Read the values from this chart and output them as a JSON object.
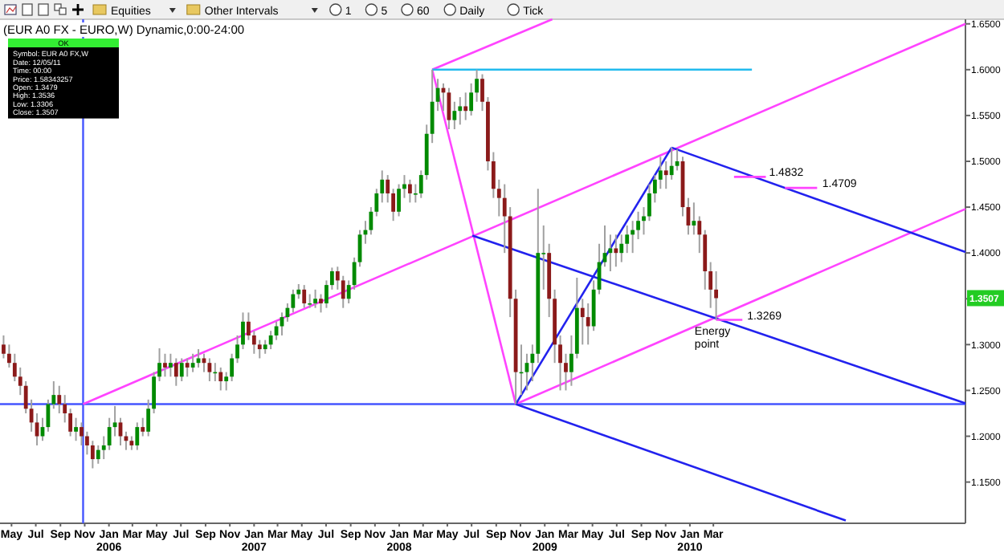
{
  "chart_data": {
    "type": "candlestick",
    "title": "(EUR A0 FX - EURO,W) Dynamic,0:00-24:00",
    "x": [
      "2005-04-11",
      "2005-04-25",
      "2005-05-09",
      "2005-05-23",
      "2005-06-06",
      "2005-06-20",
      "2005-07-04",
      "2005-07-18",
      "2005-08-01",
      "2005-08-15",
      "2005-08-29",
      "2005-09-12",
      "2005-09-26",
      "2005-10-10",
      "2005-10-24",
      "2005-11-07",
      "2005-11-21",
      "2005-12-05",
      "2005-12-19",
      "2006-01-02",
      "2006-01-16",
      "2006-01-30",
      "2006-02-13",
      "2006-02-27",
      "2006-03-13",
      "2006-03-27",
      "2006-04-10",
      "2006-04-24",
      "2006-05-08",
      "2006-05-22",
      "2006-06-05",
      "2006-06-19",
      "2006-07-03",
      "2006-07-17",
      "2006-07-31",
      "2006-08-14",
      "2006-08-28",
      "2006-09-11",
      "2006-09-25",
      "2006-10-09",
      "2006-10-23",
      "2006-11-06",
      "2006-11-20",
      "2006-12-04",
      "2006-12-18",
      "2007-01-01",
      "2007-01-15",
      "2007-01-29",
      "2007-02-12",
      "2007-02-26",
      "2007-03-12",
      "2007-03-26",
      "2007-04-09",
      "2007-04-23",
      "2007-05-07",
      "2007-05-21",
      "2007-06-04",
      "2007-06-18",
      "2007-07-02",
      "2007-07-16",
      "2007-07-30",
      "2007-08-13",
      "2007-08-27",
      "2007-09-10",
      "2007-09-24",
      "2007-10-08",
      "2007-10-22",
      "2007-11-05",
      "2007-11-19",
      "2007-12-03",
      "2007-12-17",
      "2007-12-31",
      "2008-01-14",
      "2008-01-28",
      "2008-02-11",
      "2008-02-25",
      "2008-03-10",
      "2008-03-24",
      "2008-04-07",
      "2008-04-21",
      "2008-05-05",
      "2008-05-19",
      "2008-06-02",
      "2008-06-16",
      "2008-06-30",
      "2008-07-14",
      "2008-07-28",
      "2008-08-11",
      "2008-08-25",
      "2008-09-08",
      "2008-09-22",
      "2008-10-06",
      "2008-10-20",
      "2008-11-03",
      "2008-11-17",
      "2008-12-01",
      "2008-12-15",
      "2008-12-29",
      "2009-01-12",
      "2009-01-26",
      "2009-02-09",
      "2009-02-23",
      "2009-03-09",
      "2009-03-23",
      "2009-04-06",
      "2009-04-20",
      "2009-05-04",
      "2009-05-18",
      "2009-06-01",
      "2009-06-15",
      "2009-06-29",
      "2009-07-13",
      "2009-07-27",
      "2009-08-10",
      "2009-08-24",
      "2009-09-07",
      "2009-09-21",
      "2009-10-05",
      "2009-10-19",
      "2009-11-02",
      "2009-11-16",
      "2009-11-30",
      "2009-12-14",
      "2009-12-28",
      "2010-01-11",
      "2010-01-25",
      "2010-02-08",
      "2010-02-22",
      "2010-03-08"
    ],
    "ohlc": [
      [
        1.3,
        1.31,
        1.285,
        1.29
      ],
      [
        1.29,
        1.3,
        1.275,
        1.28
      ],
      [
        1.28,
        1.29,
        1.26,
        1.265
      ],
      [
        1.265,
        1.275,
        1.245,
        1.255
      ],
      [
        1.255,
        1.26,
        1.225,
        1.23
      ],
      [
        1.23,
        1.24,
        1.205,
        1.215
      ],
      [
        1.215,
        1.225,
        1.19,
        1.2
      ],
      [
        1.2,
        1.22,
        1.195,
        1.21
      ],
      [
        1.21,
        1.24,
        1.205,
        1.235
      ],
      [
        1.235,
        1.26,
        1.23,
        1.245
      ],
      [
        1.245,
        1.255,
        1.225,
        1.235
      ],
      [
        1.235,
        1.245,
        1.215,
        1.225
      ],
      [
        1.225,
        1.23,
        1.2,
        1.205
      ],
      [
        1.205,
        1.22,
        1.195,
        1.21
      ],
      [
        1.21,
        1.215,
        1.19,
        1.2
      ],
      [
        1.2,
        1.205,
        1.18,
        1.19
      ],
      [
        1.19,
        1.195,
        1.165,
        1.175
      ],
      [
        1.175,
        1.19,
        1.17,
        1.185
      ],
      [
        1.185,
        1.2,
        1.175,
        1.19
      ],
      [
        1.19,
        1.22,
        1.185,
        1.21
      ],
      [
        1.21,
        1.233,
        1.2,
        1.215
      ],
      [
        1.215,
        1.22,
        1.19,
        1.2
      ],
      [
        1.2,
        1.205,
        1.185,
        1.195
      ],
      [
        1.195,
        1.2,
        1.185,
        1.19
      ],
      [
        1.19,
        1.215,
        1.185,
        1.21
      ],
      [
        1.21,
        1.22,
        1.2,
        1.205
      ],
      [
        1.205,
        1.24,
        1.2,
        1.23
      ],
      [
        1.23,
        1.27,
        1.225,
        1.265
      ],
      [
        1.265,
        1.296,
        1.26,
        1.28
      ],
      [
        1.28,
        1.29,
        1.265,
        1.275
      ],
      [
        1.275,
        1.29,
        1.265,
        1.28
      ],
      [
        1.28,
        1.285,
        1.255,
        1.265
      ],
      [
        1.265,
        1.285,
        1.26,
        1.28
      ],
      [
        1.28,
        1.285,
        1.265,
        1.275
      ],
      [
        1.275,
        1.29,
        1.27,
        1.28
      ],
      [
        1.28,
        1.295,
        1.275,
        1.285
      ],
      [
        1.285,
        1.29,
        1.27,
        1.28
      ],
      [
        1.28,
        1.285,
        1.26,
        1.27
      ],
      [
        1.27,
        1.28,
        1.26,
        1.27
      ],
      [
        1.27,
        1.275,
        1.25,
        1.26
      ],
      [
        1.26,
        1.27,
        1.25,
        1.265
      ],
      [
        1.265,
        1.29,
        1.26,
        1.285
      ],
      [
        1.285,
        1.31,
        1.28,
        1.3
      ],
      [
        1.3,
        1.335,
        1.295,
        1.325
      ],
      [
        1.325,
        1.335,
        1.305,
        1.31
      ],
      [
        1.31,
        1.315,
        1.29,
        1.3
      ],
      [
        1.3,
        1.305,
        1.285,
        1.295
      ],
      [
        1.295,
        1.305,
        1.29,
        1.3
      ],
      [
        1.3,
        1.315,
        1.295,
        1.31
      ],
      [
        1.31,
        1.325,
        1.305,
        1.32
      ],
      [
        1.32,
        1.335,
        1.31,
        1.33
      ],
      [
        1.33,
        1.345,
        1.325,
        1.34
      ],
      [
        1.34,
        1.36,
        1.335,
        1.355
      ],
      [
        1.355,
        1.366,
        1.35,
        1.36
      ],
      [
        1.36,
        1.365,
        1.34,
        1.345
      ],
      [
        1.345,
        1.355,
        1.34,
        1.345
      ],
      [
        1.345,
        1.36,
        1.34,
        1.35
      ],
      [
        1.35,
        1.355,
        1.335,
        1.345
      ],
      [
        1.345,
        1.37,
        1.34,
        1.365
      ],
      [
        1.365,
        1.384,
        1.36,
        1.38
      ],
      [
        1.38,
        1.385,
        1.36,
        1.37
      ],
      [
        1.37,
        1.375,
        1.34,
        1.35
      ],
      [
        1.35,
        1.37,
        1.345,
        1.365
      ],
      [
        1.365,
        1.395,
        1.36,
        1.39
      ],
      [
        1.39,
        1.425,
        1.385,
        1.42
      ],
      [
        1.42,
        1.435,
        1.41,
        1.425
      ],
      [
        1.425,
        1.45,
        1.42,
        1.445
      ],
      [
        1.445,
        1.47,
        1.44,
        1.465
      ],
      [
        1.465,
        1.49,
        1.455,
        1.48
      ],
      [
        1.48,
        1.485,
        1.455,
        1.465
      ],
      [
        1.465,
        1.47,
        1.435,
        1.445
      ],
      [
        1.445,
        1.475,
        1.44,
        1.47
      ],
      [
        1.47,
        1.485,
        1.46,
        1.475
      ],
      [
        1.475,
        1.48,
        1.455,
        1.465
      ],
      [
        1.465,
        1.475,
        1.455,
        1.465
      ],
      [
        1.465,
        1.49,
        1.46,
        1.485
      ],
      [
        1.485,
        1.54,
        1.48,
        1.53
      ],
      [
        1.53,
        1.6,
        1.52,
        1.565
      ],
      [
        1.565,
        1.59,
        1.555,
        1.58
      ],
      [
        1.58,
        1.585,
        1.555,
        1.575
      ],
      [
        1.575,
        1.58,
        1.535,
        1.545
      ],
      [
        1.545,
        1.565,
        1.535,
        1.555
      ],
      [
        1.555,
        1.57,
        1.54,
        1.56
      ],
      [
        1.56,
        1.575,
        1.545,
        1.555
      ],
      [
        1.555,
        1.585,
        1.55,
        1.575
      ],
      [
        1.575,
        1.6,
        1.565,
        1.59
      ],
      [
        1.59,
        1.595,
        1.555,
        1.565
      ],
      [
        1.565,
        1.57,
        1.49,
        1.5
      ],
      [
        1.5,
        1.51,
        1.46,
        1.47
      ],
      [
        1.47,
        1.48,
        1.44,
        1.46
      ],
      [
        1.46,
        1.475,
        1.4,
        1.44
      ],
      [
        1.44,
        1.45,
        1.33,
        1.35
      ],
      [
        1.35,
        1.36,
        1.235,
        1.27
      ],
      [
        1.27,
        1.3,
        1.245,
        1.27
      ],
      [
        1.27,
        1.29,
        1.25,
        1.28
      ],
      [
        1.28,
        1.3,
        1.26,
        1.29
      ],
      [
        1.29,
        1.47,
        1.28,
        1.4
      ],
      [
        1.4,
        1.43,
        1.36,
        1.4
      ],
      [
        1.4,
        1.41,
        1.33,
        1.35
      ],
      [
        1.35,
        1.36,
        1.28,
        1.3
      ],
      [
        1.3,
        1.31,
        1.25,
        1.28
      ],
      [
        1.28,
        1.29,
        1.25,
        1.27
      ],
      [
        1.27,
        1.31,
        1.255,
        1.29
      ],
      [
        1.29,
        1.373,
        1.285,
        1.34
      ],
      [
        1.34,
        1.35,
        1.3,
        1.33
      ],
      [
        1.33,
        1.345,
        1.3,
        1.32
      ],
      [
        1.32,
        1.37,
        1.315,
        1.36
      ],
      [
        1.36,
        1.41,
        1.355,
        1.39
      ],
      [
        1.39,
        1.43,
        1.385,
        1.4
      ],
      [
        1.4,
        1.42,
        1.38,
        1.405
      ],
      [
        1.405,
        1.42,
        1.385,
        1.4
      ],
      [
        1.4,
        1.42,
        1.39,
        1.41
      ],
      [
        1.41,
        1.43,
        1.4,
        1.42
      ],
      [
        1.42,
        1.435,
        1.4,
        1.425
      ],
      [
        1.425,
        1.445,
        1.415,
        1.435
      ],
      [
        1.435,
        1.45,
        1.42,
        1.44
      ],
      [
        1.44,
        1.475,
        1.435,
        1.465
      ],
      [
        1.465,
        1.485,
        1.455,
        1.48
      ],
      [
        1.48,
        1.505,
        1.47,
        1.49
      ],
      [
        1.49,
        1.5,
        1.47,
        1.485
      ],
      [
        1.485,
        1.515,
        1.48,
        1.495
      ],
      [
        1.495,
        1.513,
        1.49,
        1.5
      ],
      [
        1.5,
        1.505,
        1.44,
        1.45
      ],
      [
        1.45,
        1.46,
        1.42,
        1.43
      ],
      [
        1.43,
        1.455,
        1.42,
        1.435
      ],
      [
        1.435,
        1.44,
        1.4,
        1.42
      ],
      [
        1.42,
        1.425,
        1.36,
        1.38
      ],
      [
        1.38,
        1.39,
        1.34,
        1.36
      ],
      [
        1.36,
        1.38,
        1.3269,
        1.3507
      ]
    ],
    "series": [
      {
        "type": "line",
        "color": "#ff44ff",
        "x": [
          "2005-10-28",
          "2011-11-25"
        ],
        "values": [
          1.235,
          1.65
        ]
      },
      {
        "type": "line",
        "color": "#ff44ff",
        "x": [
          "2008-03-24",
          "2009-01-20"
        ],
        "values": [
          1.6,
          1.655
        ]
      },
      {
        "type": "line",
        "color": "#ff44ff",
        "x": [
          "2008-03-24",
          "2008-10-20"
        ],
        "values": [
          1.6,
          1.235
        ]
      },
      {
        "type": "line",
        "color": "#ff44ff",
        "x": [
          "2008-10-20",
          "2011-11-25"
        ],
        "values": [
          1.235,
          1.448
        ]
      },
      {
        "type": "line",
        "color": "#2222ee",
        "x": [
          "2008-07-03",
          "2011-11-25"
        ],
        "values": [
          1.419,
          1.236
        ]
      },
      {
        "type": "line",
        "color": "#2222ee",
        "x": [
          "2008-10-20",
          "2011-01-28"
        ],
        "values": [
          1.235,
          1.108
        ]
      },
      {
        "type": "line",
        "color": "#2222ee",
        "x": [
          "2009-11-16",
          "2011-11-25"
        ],
        "values": [
          1.515,
          1.401
        ]
      },
      {
        "type": "line",
        "color": "#2222ee",
        "x": [
          "2008-10-20",
          "2009-11-16"
        ],
        "values": [
          1.235,
          1.515
        ]
      },
      {
        "type": "line",
        "color": "#22bbee",
        "x": [
          "2008-03-24",
          "2010-06-06"
        ],
        "values": [
          1.6,
          1.6
        ]
      },
      {
        "type": "line",
        "color": "#ff44ff",
        "x": [
          "2010-04-22",
          "2010-07-11"
        ],
        "values": [
          1.483,
          1.483
        ]
      },
      {
        "type": "line",
        "color": "#ff44ff",
        "x": [
          "2010-08-28",
          "2010-11-17"
        ],
        "values": [
          1.471,
          1.471
        ]
      },
      {
        "type": "line",
        "color": "#ff44ff",
        "x": [
          "2010-03-08",
          "2010-05-13"
        ],
        "values": [
          1.327,
          1.327
        ]
      }
    ],
    "ref_lines": [
      {
        "axis": "y",
        "value": 1.235,
        "color": "#4455ff"
      },
      {
        "axis": "x",
        "value": "2005-10-28",
        "color": "#4455ff"
      }
    ],
    "annotations": [
      "Equities",
      "Other Intervals",
      "1",
      "5",
      "60",
      "Daily",
      "Tick",
      "OK",
      "Symbol: EUR A0 FX,W",
      "Date: 12/05/11",
      "Time: 00:00",
      "Price: 1.58343257",
      "Open: 1.3479",
      "High: 1.3536",
      "Low: 1.3306",
      "Close: 1.3507",
      {
        "text": "1.4832",
        "x": "2010-07-19",
        "y": 1.4832
      },
      {
        "text": "1.4709",
        "x": "2010-11-30",
        "y": 1.4709
      },
      {
        "text": "1.3269",
        "x": "2010-05-25",
        "y": 1.3269
      },
      {
        "text": "Energy point",
        "x": "2010-01-13",
        "y": 1.31
      },
      "1.3507"
    ],
    "xlim": [
      "2005-04-02",
      "2011-11-25"
    ],
    "ylim": [
      1.105,
      1.655
    ],
    "xticks": [
      {
        "value": "2005-05-01",
        "label": "May"
      },
      {
        "value": "2005-07-01",
        "label": "Jul"
      },
      {
        "value": "2005-09-01",
        "label": "Sep"
      },
      {
        "value": "2005-11-01",
        "label": "Nov"
      },
      {
        "value": "2006-01-01",
        "label": "Jan\n2006"
      },
      {
        "value": "2006-03-01",
        "label": "Mar"
      },
      {
        "value": "2006-05-01",
        "label": "May"
      },
      {
        "value": "2006-07-01",
        "label": "Jul"
      },
      {
        "value": "2006-09-01",
        "label": "Sep"
      },
      {
        "value": "2006-11-01",
        "label": "Nov"
      },
      {
        "value": "2007-01-01",
        "label": "Jan\n2007"
      },
      {
        "value": "2007-03-01",
        "label": "Mar"
      },
      {
        "value": "2007-05-01",
        "label": "May"
      },
      {
        "value": "2007-07-01",
        "label": "Jul"
      },
      {
        "value": "2007-09-01",
        "label": "Sep"
      },
      {
        "value": "2007-11-01",
        "label": "Nov"
      },
      {
        "value": "2008-01-01",
        "label": "Jan\n2008"
      },
      {
        "value": "2008-03-01",
        "label": "Mar"
      },
      {
        "value": "2008-05-01",
        "label": "May"
      },
      {
        "value": "2008-07-01",
        "label": "Jul"
      },
      {
        "value": "2008-09-01",
        "label": "Sep"
      },
      {
        "value": "2008-11-01",
        "label": "Nov"
      },
      {
        "value": "2009-01-01",
        "label": "Jan\n2009"
      },
      {
        "value": "2009-03-01",
        "label": "Mar"
      },
      {
        "value": "2009-05-01",
        "label": "May"
      },
      {
        "value": "2009-07-01",
        "label": "Jul"
      },
      {
        "value": "2009-09-01",
        "label": "Sep"
      },
      {
        "value": "2009-11-01",
        "label": "Nov"
      },
      {
        "value": "2010-01-01",
        "label": "Jan\n2010"
      },
      {
        "value": "2010-03-01",
        "label": "Mar"
      }
    ],
    "yticks": [
      {
        "value": 1.15,
        "label": "1.1500"
      },
      {
        "value": 1.2,
        "label": "1.2000"
      },
      {
        "value": 1.25,
        "label": "1.2500"
      },
      {
        "value": 1.3,
        "label": "1.3000"
      },
      {
        "value": 1.35,
        "label": null
      },
      {
        "value": 1.4,
        "label": "1.4000"
      },
      {
        "value": 1.45,
        "label": "1.4500"
      },
      {
        "value": 1.5,
        "label": "1.5000"
      },
      {
        "value": 1.55,
        "label": "1.5500"
      },
      {
        "value": 1.6,
        "label": "1.6000"
      },
      {
        "value": 1.65,
        "label": "1.6500"
      }
    ]
  }
}
